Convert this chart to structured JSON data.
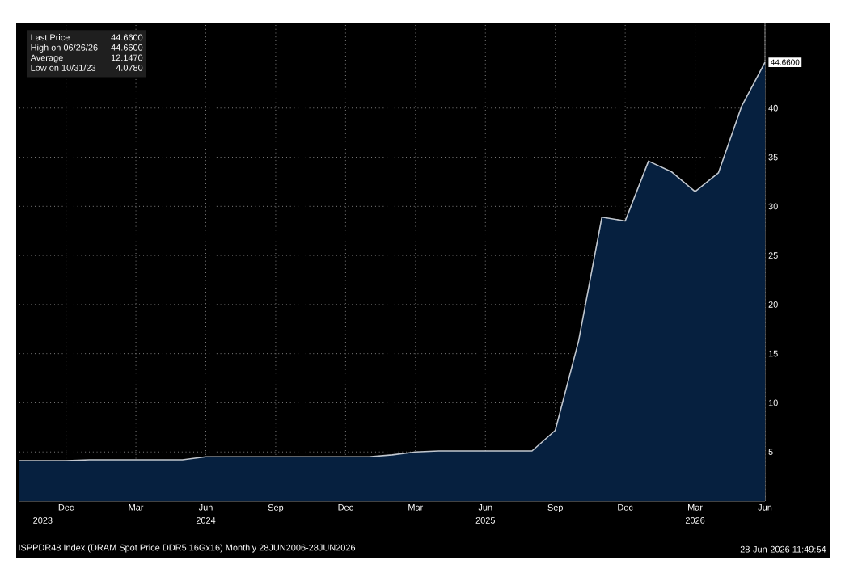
{
  "chart_data": {
    "type": "area",
    "x": [
      "2023-10",
      "2023-11",
      "2023-12",
      "2024-01",
      "2024-02",
      "2024-03",
      "2024-04",
      "2024-05",
      "2024-06",
      "2024-07",
      "2024-08",
      "2024-09",
      "2024-10",
      "2024-11",
      "2024-12",
      "2025-01",
      "2025-02",
      "2025-03",
      "2025-04",
      "2025-05",
      "2025-06",
      "2025-07",
      "2025-08",
      "2025-09",
      "2025-10",
      "2025-11",
      "2025-12",
      "2026-01",
      "2026-02",
      "2026-03",
      "2026-04",
      "2026-05",
      "2026-06"
    ],
    "series": [
      {
        "color": "#06203f",
        "values": [
          4.1,
          4.1,
          4.1,
          4.2,
          4.2,
          4.2,
          4.2,
          4.2,
          4.5,
          4.5,
          4.5,
          4.5,
          4.5,
          4.5,
          4.5,
          4.5,
          4.7,
          5.0,
          5.1,
          5.1,
          5.1,
          5.1,
          5.1,
          7.2,
          16.3,
          28.9,
          28.5,
          34.6,
          33.5,
          31.5,
          33.4,
          40.2,
          44.66
        ]
      }
    ],
    "xlim": [
      "2023-10",
      "2026-06"
    ],
    "ylim": [
      0,
      48.7
    ],
    "yticks": [
      5,
      10,
      15,
      20,
      25,
      30,
      35,
      40
    ],
    "xticks": [
      {
        "value": "2023-12",
        "label": "Dec"
      },
      {
        "value": "2024-03",
        "label": "Mar"
      },
      {
        "value": "2024-06",
        "label": "Jun"
      },
      {
        "value": "2024-09",
        "label": "Sep"
      },
      {
        "value": "2024-12",
        "label": "Dec"
      },
      {
        "value": "2025-03",
        "label": "Mar"
      },
      {
        "value": "2025-06",
        "label": "Jun"
      },
      {
        "value": "2025-09",
        "label": "Sep"
      },
      {
        "value": "2025-12",
        "label": "Dec"
      },
      {
        "value": "2026-03",
        "label": "Mar"
      },
      {
        "value": "2026-06",
        "label": "Jun"
      }
    ],
    "x2lim": [
      "2023-10",
      "2026-06"
    ],
    "x2ticks": [
      {
        "value": "2023-11",
        "label": "2023"
      },
      {
        "value": "2024-06",
        "label": "2024"
      },
      {
        "value": "2025-06",
        "label": "2025"
      },
      {
        "value": "2026-03",
        "label": "2026"
      }
    ],
    "grid": true,
    "annotations": [
      "Last Price",
      "44.6600",
      "High on 06/26/26",
      "44.6600",
      "Average",
      "12.1470",
      "Low on 10/31/23",
      "4.0780",
      {
        "text": "44.6600",
        "x": "2026-06",
        "y": 44.66
      },
      "ISPPDR48 Index (DRAM Spot Price DDR5 16Gx16) Monthly 28JUN2006-28JUN2026",
      "28-Jun-2026 11:49:54"
    ]
  }
}
